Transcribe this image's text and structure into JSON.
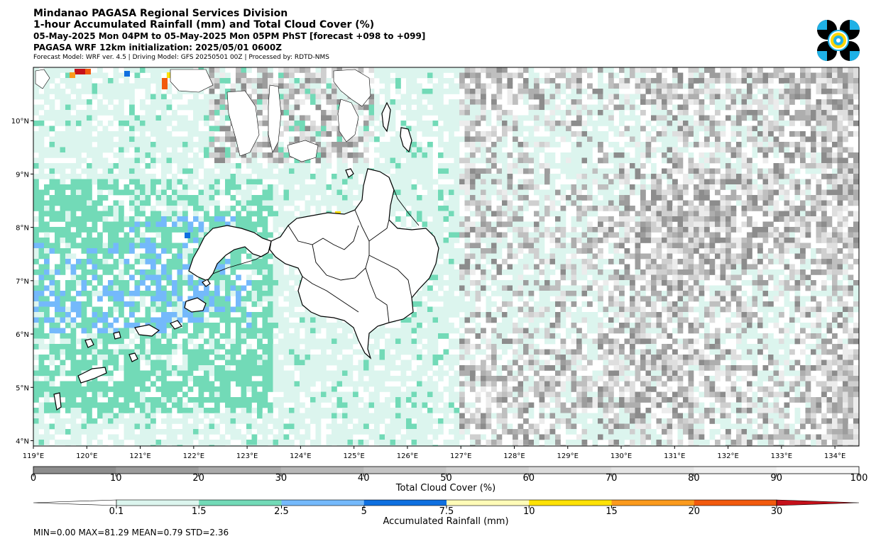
{
  "header": {
    "line1": "Mindanao PAGASA Regional Services Division",
    "line2": "1-hour Accumulated Rainfall (mm) and Total Cloud Cover (%)",
    "line3": "05-May-2025 Mon 04PM to 05-May-2025 Mon 05PM PhST [forecast +098 to +099]",
    "line4": "PAGASA WRF 12km initialization: 2025/05/01 0600Z",
    "line5": "Forecast Model: WRF ver. 4.5 | Driving Model: GFS 20250501 00Z | Processed by: RDTD-NMS"
  },
  "logo": {
    "name": "pagasa-logo-icon",
    "colors": [
      "#000000",
      "#1fb1e6",
      "#ffd500",
      "#ffffff"
    ]
  },
  "map": {
    "lon_range": [
      119,
      134.45
    ],
    "lat_range": [
      3.9,
      11.0
    ],
    "x_ticks": [
      {
        "value": 119,
        "label": "119°E"
      },
      {
        "value": 120,
        "label": "120°E"
      },
      {
        "value": 121,
        "label": "121°E"
      },
      {
        "value": 122,
        "label": "122°E"
      },
      {
        "value": 123,
        "label": "123°E"
      },
      {
        "value": 124,
        "label": "124°E"
      },
      {
        "value": 125,
        "label": "125°E"
      },
      {
        "value": 126,
        "label": "126°E"
      },
      {
        "value": 127,
        "label": "127°E"
      },
      {
        "value": 128,
        "label": "128°E"
      },
      {
        "value": 129,
        "label": "129°E"
      },
      {
        "value": 130,
        "label": "130°E"
      },
      {
        "value": 131,
        "label": "131°E"
      },
      {
        "value": 132,
        "label": "132°E"
      },
      {
        "value": 133,
        "label": "133°E"
      },
      {
        "value": 134,
        "label": "134°E"
      }
    ],
    "y_ticks": [
      {
        "value": 10,
        "label": "10°N"
      },
      {
        "value": 9,
        "label": "9°N"
      },
      {
        "value": 8,
        "label": "8°N"
      },
      {
        "value": 7,
        "label": "7°N"
      },
      {
        "value": 6,
        "label": "6°N"
      },
      {
        "value": 5,
        "label": "5°N"
      },
      {
        "value": 4,
        "label": "4°N"
      }
    ]
  },
  "cloud_colorbar": {
    "title": "Total Cloud Cover (%)",
    "ticks": [
      "0",
      "10",
      "20",
      "30",
      "40",
      "50",
      "60",
      "70",
      "80",
      "90",
      "100"
    ],
    "colors": [
      "#8c8c8c",
      "#9b9b9b",
      "#aaaaaa",
      "#b7b7b7",
      "#c4c4c4",
      "#d0d0d0",
      "#dbdbdb",
      "#e5e5e5",
      "#efefef",
      "#f8f8f8"
    ]
  },
  "rain_colorbar": {
    "title": "Accumulated Rainfall (mm)",
    "ticks": [
      "0.1",
      "1.5",
      "2.5",
      "5",
      "7.5",
      "10",
      "15",
      "20",
      "30"
    ],
    "colors": [
      "#ffffff",
      "#dcf5ee",
      "#72dab7",
      "#74b9fb",
      "#0e6fe0",
      "#fffbb7",
      "#ffe205",
      "#fb9a1d",
      "#f25a0e",
      "#c5101a"
    ]
  },
  "stats": {
    "text": "MIN=0.00   MAX=81.29   MEAN=0.79   STD=2.36"
  }
}
